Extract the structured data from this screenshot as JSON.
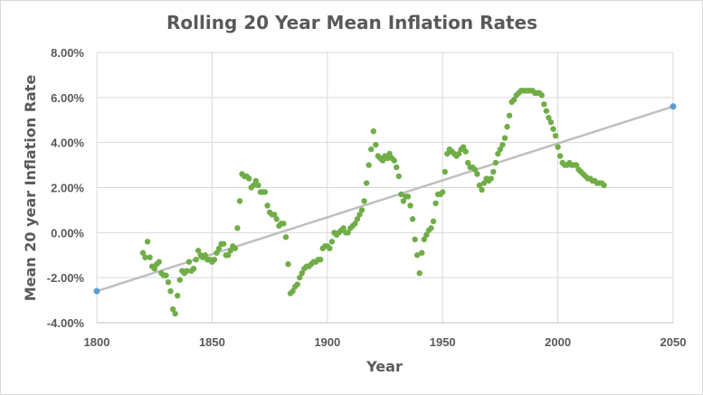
{
  "chart_data": {
    "type": "scatter",
    "title": "Rolling 20 Year Mean Inflation Rates",
    "xlabel": "Year",
    "ylabel": "Mean 20 year Inflation Rate",
    "xlim": [
      1800,
      2050
    ],
    "ylim": [
      -4,
      8
    ],
    "x_ticks": [
      1800,
      1850,
      1900,
      1950,
      2000,
      2050
    ],
    "y_ticks": [
      -4,
      -2,
      0,
      2,
      4,
      6,
      8
    ],
    "y_tick_labels": [
      "-4.00%",
      "-2.00%",
      "0.00%",
      "2.00%",
      "4.00%",
      "6.00%",
      "8.00%"
    ],
    "x_tick_labels": [
      "1800",
      "1850",
      "1900",
      "1950",
      "2000",
      "2050"
    ],
    "grid": true,
    "legend": "none",
    "colors": {
      "points": "#70ad47",
      "trend": "#bfbfbf",
      "trend_end": "#5b9bd5",
      "text": "#595959",
      "grid": "#d9d9d9"
    },
    "series": [
      {
        "values": [
          [
            1820,
            -0.9
          ],
          [
            1821,
            -1.1
          ],
          [
            1822,
            -0.4
          ],
          [
            1823,
            -1.1
          ],
          [
            1824,
            -1.5
          ],
          [
            1825,
            -1.6
          ],
          [
            1826,
            -1.4
          ],
          [
            1827,
            -1.3
          ],
          [
            1828,
            -1.8
          ],
          [
            1829,
            -1.9
          ],
          [
            1830,
            -1.9
          ],
          [
            1831,
            -2.2
          ],
          [
            1832,
            -2.6
          ],
          [
            1833,
            -3.4
          ],
          [
            1834,
            -3.6
          ],
          [
            1835,
            -2.8
          ],
          [
            1836,
            -2.1
          ],
          [
            1837,
            -1.7
          ],
          [
            1838,
            -1.8
          ],
          [
            1839,
            -1.7
          ],
          [
            1840,
            -1.3
          ],
          [
            1841,
            -1.7
          ],
          [
            1842,
            -1.6
          ],
          [
            1843,
            -1.2
          ],
          [
            1844,
            -0.8
          ],
          [
            1845,
            -1.0
          ],
          [
            1846,
            -1.1
          ],
          [
            1847,
            -1.0
          ],
          [
            1848,
            -1.2
          ],
          [
            1849,
            -1.2
          ],
          [
            1850,
            -1.3
          ],
          [
            1851,
            -1.2
          ],
          [
            1852,
            -0.9
          ],
          [
            1853,
            -0.7
          ],
          [
            1854,
            -0.5
          ],
          [
            1855,
            -0.5
          ],
          [
            1856,
            -1.0
          ],
          [
            1857,
            -1.0
          ],
          [
            1858,
            -0.8
          ],
          [
            1859,
            -0.6
          ],
          [
            1860,
            -0.7
          ],
          [
            1861,
            0.2
          ],
          [
            1862,
            1.4
          ],
          [
            1863,
            2.6
          ],
          [
            1864,
            2.5
          ],
          [
            1865,
            2.5
          ],
          [
            1866,
            2.4
          ],
          [
            1867,
            2.0
          ],
          [
            1868,
            2.1
          ],
          [
            1869,
            2.3
          ],
          [
            1870,
            2.1
          ],
          [
            1871,
            1.8
          ],
          [
            1872,
            1.8
          ],
          [
            1873,
            1.8
          ],
          [
            1874,
            1.2
          ],
          [
            1875,
            0.9
          ],
          [
            1876,
            0.8
          ],
          [
            1877,
            0.8
          ],
          [
            1878,
            0.6
          ],
          [
            1879,
            0.3
          ],
          [
            1880,
            0.4
          ],
          [
            1881,
            0.4
          ],
          [
            1882,
            -0.2
          ],
          [
            1883,
            -1.4
          ],
          [
            1884,
            -2.7
          ],
          [
            1885,
            -2.6
          ],
          [
            1886,
            -2.4
          ],
          [
            1887,
            -2.3
          ],
          [
            1888,
            -2.0
          ],
          [
            1889,
            -1.8
          ],
          [
            1890,
            -1.6
          ],
          [
            1891,
            -1.5
          ],
          [
            1892,
            -1.5
          ],
          [
            1893,
            -1.4
          ],
          [
            1894,
            -1.3
          ],
          [
            1895,
            -1.3
          ],
          [
            1896,
            -1.2
          ],
          [
            1897,
            -1.2
          ],
          [
            1898,
            -0.7
          ],
          [
            1899,
            -0.6
          ],
          [
            1900,
            -0.6
          ],
          [
            1901,
            -0.7
          ],
          [
            1902,
            -0.4
          ],
          [
            1903,
            0.0
          ],
          [
            1904,
            -0.1
          ],
          [
            1905,
            0.0
          ],
          [
            1906,
            0.1
          ],
          [
            1907,
            0.2
          ],
          [
            1908,
            0.0
          ],
          [
            1909,
            0.0
          ],
          [
            1910,
            0.2
          ],
          [
            1911,
            0.3
          ],
          [
            1912,
            0.4
          ],
          [
            1913,
            0.6
          ],
          [
            1914,
            0.8
          ],
          [
            1915,
            1.0
          ],
          [
            1916,
            1.4
          ],
          [
            1917,
            2.2
          ],
          [
            1918,
            3.0
          ],
          [
            1919,
            3.7
          ],
          [
            1920,
            4.5
          ],
          [
            1921,
            3.9
          ],
          [
            1922,
            3.4
          ],
          [
            1923,
            3.3
          ],
          [
            1924,
            3.2
          ],
          [
            1925,
            3.4
          ],
          [
            1926,
            3.3
          ],
          [
            1927,
            3.5
          ],
          [
            1928,
            3.3
          ],
          [
            1929,
            3.2
          ],
          [
            1930,
            2.9
          ],
          [
            1931,
            2.5
          ],
          [
            1932,
            1.7
          ],
          [
            1933,
            1.4
          ],
          [
            1934,
            1.6
          ],
          [
            1935,
            1.6
          ],
          [
            1936,
            1.2
          ],
          [
            1937,
            0.6
          ],
          [
            1938,
            -0.3
          ],
          [
            1939,
            -1.0
          ],
          [
            1940,
            -1.8
          ],
          [
            1941,
            -0.9
          ],
          [
            1942,
            -0.3
          ],
          [
            1943,
            -0.1
          ],
          [
            1944,
            0.1
          ],
          [
            1945,
            0.2
          ],
          [
            1946,
            0.5
          ],
          [
            1947,
            1.3
          ],
          [
            1948,
            1.7
          ],
          [
            1949,
            1.7
          ],
          [
            1950,
            1.8
          ],
          [
            1951,
            2.7
          ],
          [
            1952,
            3.5
          ],
          [
            1953,
            3.7
          ],
          [
            1954,
            3.6
          ],
          [
            1955,
            3.5
          ],
          [
            1956,
            3.4
          ],
          [
            1957,
            3.5
          ],
          [
            1958,
            3.7
          ],
          [
            1959,
            3.8
          ],
          [
            1960,
            3.6
          ],
          [
            1961,
            3.1
          ],
          [
            1962,
            2.9
          ],
          [
            1963,
            2.9
          ],
          [
            1964,
            2.8
          ],
          [
            1965,
            2.6
          ],
          [
            1966,
            2.1
          ],
          [
            1967,
            1.9
          ],
          [
            1968,
            2.2
          ],
          [
            1969,
            2.4
          ],
          [
            1970,
            2.3
          ],
          [
            1971,
            2.4
          ],
          [
            1972,
            2.7
          ],
          [
            1973,
            3.1
          ],
          [
            1974,
            3.5
          ],
          [
            1975,
            3.7
          ],
          [
            1976,
            3.9
          ],
          [
            1977,
            4.2
          ],
          [
            1978,
            4.7
          ],
          [
            1979,
            5.2
          ],
          [
            1980,
            5.8
          ],
          [
            1981,
            5.9
          ],
          [
            1982,
            6.1
          ],
          [
            1983,
            6.2
          ],
          [
            1984,
            6.3
          ],
          [
            1985,
            6.3
          ],
          [
            1986,
            6.3
          ],
          [
            1987,
            6.3
          ],
          [
            1988,
            6.3
          ],
          [
            1989,
            6.3
          ],
          [
            1990,
            6.2
          ],
          [
            1991,
            6.2
          ],
          [
            1992,
            6.2
          ],
          [
            1993,
            6.1
          ],
          [
            1994,
            5.7
          ],
          [
            1995,
            5.4
          ],
          [
            1996,
            5.1
          ],
          [
            1997,
            4.9
          ],
          [
            1998,
            4.6
          ],
          [
            1999,
            4.3
          ],
          [
            2000,
            3.8
          ],
          [
            2001,
            3.4
          ],
          [
            2002,
            3.1
          ],
          [
            2003,
            3.0
          ],
          [
            2004,
            3.0
          ],
          [
            2005,
            3.1
          ],
          [
            2006,
            3.0
          ],
          [
            2007,
            3.0
          ],
          [
            2008,
            3.0
          ],
          [
            2009,
            2.8
          ],
          [
            2010,
            2.7
          ],
          [
            2011,
            2.6
          ],
          [
            2012,
            2.5
          ],
          [
            2013,
            2.4
          ],
          [
            2014,
            2.4
          ],
          [
            2015,
            2.3
          ],
          [
            2016,
            2.3
          ],
          [
            2017,
            2.2
          ],
          [
            2018,
            2.2
          ],
          [
            2019,
            2.2
          ],
          [
            2020,
            2.1
          ]
        ]
      }
    ],
    "trendline": {
      "x": [
        1800,
        2050
      ],
      "y": [
        -2.6,
        5.6
      ]
    }
  }
}
